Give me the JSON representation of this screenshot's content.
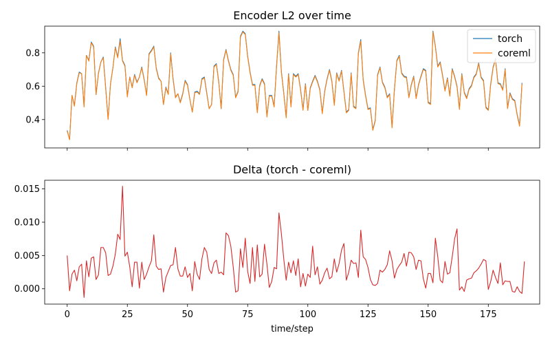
{
  "chart_data": [
    {
      "type": "line",
      "title": "Encoder L2 over time",
      "xlabel": "",
      "ylabel": "",
      "xlim": [
        -9.35,
        196.35
      ],
      "ylim": [
        0.23,
        0.96
      ],
      "xticks": [
        0,
        25,
        50,
        75,
        100,
        125,
        150,
        175
      ],
      "yticks": [
        0.4,
        0.6,
        0.8
      ],
      "ytick_labels": [
        "0.4",
        "0.6",
        "0.8"
      ],
      "legend_position": "top-right",
      "series": [
        {
          "name": "torch",
          "color": "#1f77b4",
          "values": [
            0.335,
            0.28,
            0.545,
            0.485,
            0.62,
            0.685,
            0.675,
            0.48,
            0.785,
            0.755,
            0.865,
            0.84,
            0.55,
            0.68,
            0.745,
            0.775,
            0.59,
            0.405,
            0.615,
            0.71,
            0.835,
            0.775,
            0.885,
            0.755,
            0.725,
            0.54,
            0.655,
            0.595,
            0.67,
            0.625,
            0.655,
            0.715,
            0.64,
            0.545,
            0.795,
            0.815,
            0.84,
            0.71,
            0.65,
            0.63,
            0.49,
            0.595,
            0.555,
            0.8,
            0.645,
            0.535,
            0.555,
            0.505,
            0.555,
            0.635,
            0.61,
            0.52,
            0.445,
            0.565,
            0.57,
            0.555,
            0.645,
            0.655,
            0.56,
            0.465,
            0.49,
            0.72,
            0.735,
            0.625,
            0.465,
            0.76,
            0.82,
            0.755,
            0.7,
            0.67,
            0.535,
            0.57,
            0.9,
            0.93,
            0.915,
            0.78,
            0.685,
            0.61,
            0.61,
            0.445,
            0.605,
            0.645,
            0.615,
            0.42,
            0.545,
            0.545,
            0.48,
            0.72,
            0.93,
            0.69,
            0.56,
            0.415,
            0.675,
            0.48,
            0.675,
            0.66,
            0.675,
            0.58,
            0.46,
            0.615,
            0.455,
            0.59,
            0.63,
            0.665,
            0.63,
            0.58,
            0.44,
            0.57,
            0.645,
            0.7,
            0.63,
            0.49,
            0.68,
            0.635,
            0.695,
            0.57,
            0.445,
            0.46,
            0.68,
            0.48,
            0.47,
            0.8,
            0.88,
            0.64,
            0.545,
            0.465,
            0.47,
            0.34,
            0.395,
            0.67,
            0.715,
            0.625,
            0.595,
            0.535,
            0.555,
            0.355,
            0.585,
            0.755,
            0.785,
            0.68,
            0.66,
            0.655,
            0.535,
            0.61,
            0.66,
            0.53,
            0.61,
            0.66,
            0.705,
            0.695,
            0.505,
            0.495,
            0.93,
            0.84,
            0.72,
            0.745,
            0.665,
            0.575,
            0.65,
            0.545,
            0.705,
            0.66,
            0.6,
            0.465,
            0.675,
            0.565,
            0.53,
            0.585,
            0.605,
            0.655,
            0.675,
            0.74,
            0.655,
            0.635,
            0.475,
            0.46,
            0.615,
            0.715,
            0.765,
            0.62,
            0.615,
            0.58,
            0.705,
            0.47,
            0.56,
            0.525,
            0.515,
            0.43,
            0.365,
            0.62
          ]
        },
        {
          "name": "coreml",
          "color": "#ff7f0e",
          "values": [
            0.33,
            0.28,
            0.545,
            0.48,
            0.615,
            0.68,
            0.675,
            0.475,
            0.785,
            0.75,
            0.86,
            0.835,
            0.55,
            0.675,
            0.745,
            0.77,
            0.585,
            0.4,
            0.615,
            0.71,
            0.83,
            0.77,
            0.87,
            0.75,
            0.72,
            0.535,
            0.655,
            0.59,
            0.665,
            0.62,
            0.655,
            0.71,
            0.635,
            0.545,
            0.79,
            0.81,
            0.835,
            0.705,
            0.645,
            0.63,
            0.49,
            0.59,
            0.55,
            0.795,
            0.64,
            0.53,
            0.555,
            0.5,
            0.55,
            0.63,
            0.605,
            0.52,
            0.445,
            0.56,
            0.565,
            0.55,
            0.64,
            0.65,
            0.555,
            0.465,
            0.49,
            0.715,
            0.73,
            0.62,
            0.465,
            0.755,
            0.815,
            0.75,
            0.695,
            0.665,
            0.53,
            0.565,
            0.895,
            0.925,
            0.91,
            0.775,
            0.68,
            0.605,
            0.605,
            0.44,
            0.6,
            0.64,
            0.61,
            0.415,
            0.54,
            0.54,
            0.475,
            0.715,
            0.92,
            0.685,
            0.555,
            0.41,
            0.67,
            0.475,
            0.67,
            0.655,
            0.67,
            0.575,
            0.455,
            0.61,
            0.455,
            0.585,
            0.625,
            0.66,
            0.625,
            0.575,
            0.435,
            0.565,
            0.64,
            0.695,
            0.625,
            0.485,
            0.675,
            0.63,
            0.69,
            0.565,
            0.44,
            0.455,
            0.675,
            0.475,
            0.465,
            0.795,
            0.87,
            0.635,
            0.54,
            0.46,
            0.465,
            0.335,
            0.39,
            0.665,
            0.71,
            0.62,
            0.59,
            0.53,
            0.55,
            0.35,
            0.58,
            0.75,
            0.78,
            0.675,
            0.655,
            0.65,
            0.53,
            0.605,
            0.655,
            0.525,
            0.605,
            0.655,
            0.7,
            0.69,
            0.5,
            0.49,
            0.925,
            0.835,
            0.715,
            0.74,
            0.66,
            0.57,
            0.645,
            0.54,
            0.7,
            0.655,
            0.595,
            0.46,
            0.67,
            0.56,
            0.525,
            0.58,
            0.6,
            0.65,
            0.67,
            0.735,
            0.65,
            0.63,
            0.47,
            0.455,
            0.61,
            0.71,
            0.76,
            0.615,
            0.61,
            0.575,
            0.7,
            0.465,
            0.555,
            0.52,
            0.51,
            0.425,
            0.36,
            0.615
          ]
        }
      ]
    },
    {
      "type": "line",
      "title": "Delta (torch - coreml)",
      "xlabel": "time/step",
      "ylabel": "",
      "xlim": [
        -9.35,
        196.35
      ],
      "ylim": [
        -0.0023,
        0.0163
      ],
      "xticks": [
        0,
        25,
        50,
        75,
        100,
        125,
        150,
        175
      ],
      "xtick_labels": [
        "0",
        "25",
        "50",
        "75",
        "100",
        "125",
        "150",
        "175"
      ],
      "yticks": [
        0.0,
        0.005,
        0.01,
        0.015
      ],
      "ytick_labels": [
        "0.000",
        "0.005",
        "0.010",
        "0.015"
      ],
      "series": [
        {
          "color": "#d62728",
          "values": [
            0.005,
            -0.0003,
            0.0022,
            0.0028,
            0.0012,
            0.0033,
            0.0037,
            -0.0013,
            0.0042,
            0.0018,
            0.0046,
            0.0048,
            0.0014,
            0.0021,
            0.0062,
            0.0062,
            0.0054,
            0.002,
            0.0022,
            0.0034,
            0.0052,
            0.0082,
            0.0074,
            0.0154,
            0.0049,
            0.0055,
            0.0033,
            0.0003,
            0.004,
            0.004,
            0.0001,
            0.004,
            0.0014,
            0.0022,
            0.0033,
            0.0042,
            0.0081,
            0.0034,
            0.0029,
            0.003,
            -0.0005,
            0.0017,
            0.0026,
            0.0035,
            0.0036,
            0.0062,
            0.003,
            0.0019,
            0.0019,
            0.0033,
            0.0017,
            0.0023,
            -0.0003,
            0.0041,
            0.0022,
            0.0014,
            0.0045,
            0.0062,
            0.0055,
            0.0029,
            0.0023,
            0.0039,
            0.0043,
            0.0023,
            0.0025,
            0.0021,
            0.0084,
            0.008,
            0.0064,
            0.0033,
            -0.0005,
            -0.0003,
            0.006,
            0.0032,
            0.0076,
            0.0026,
            0.0008,
            0.0062,
            0.0011,
            0.0066,
            0.0018,
            0.0022,
            0.0067,
            0.0037,
            0.0002,
            0.0011,
            0.0032,
            0.003,
            0.0114,
            0.0083,
            0.0045,
            0.0013,
            0.004,
            0.0024,
            0.0042,
            0.002,
            0.0045,
            0.0003,
            0.0023,
            0.0004,
            0.0022,
            0.0017,
            0.0064,
            0.0021,
            0.0033,
            0.0007,
            0.0013,
            0.0024,
            0.0031,
            0.0015,
            0.0018,
            0.0045,
            0.0025,
            0.0038,
            0.0058,
            0.0068,
            0.0013,
            0.0025,
            0.0043,
            0.0038,
            0.0039,
            0.0017,
            0.0088,
            0.0048,
            0.0044,
            0.0032,
            0.0014,
            0.0006,
            0.0005,
            0.0008,
            0.0028,
            0.0025,
            0.0029,
            0.0036,
            0.0057,
            0.0042,
            0.0016,
            0.0029,
            0.0035,
            0.004,
            0.0053,
            0.0034,
            0.0055,
            0.0054,
            0.0048,
            0.0029,
            0.0043,
            0.0042,
            0.0015,
            0.0001,
            0.0023,
            0.0023,
            0.0009,
            0.0076,
            0.0048,
            0.0013,
            0.0009,
            0.0041,
            0.0022,
            0.0024,
            0.0048,
            0.0075,
            0.009,
            -0.0002,
            0.0003,
            -0.0004,
            0.0013,
            0.0015,
            0.0016,
            0.0024,
            0.0027,
            0.0031,
            0.0037,
            0.0044,
            0.0042,
            -0.0001,
            0.0011,
            0.0028,
            0.0017,
            0.0008,
            0.0039,
            0.0006,
            0.0012,
            0.0011,
            0.0011,
            -0.0004,
            -0.0005,
            0.0003,
            -0.0004,
            -0.0007,
            0.0041
          ]
        }
      ]
    }
  ]
}
